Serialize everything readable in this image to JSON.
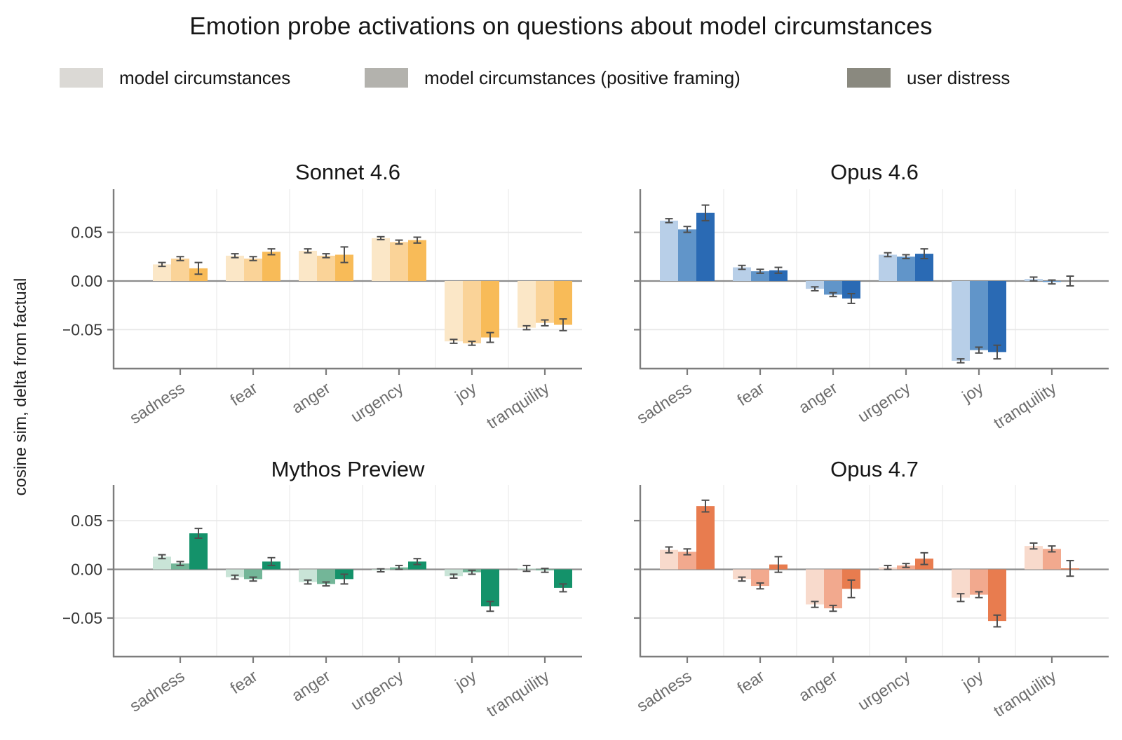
{
  "figure": {
    "title": "Emotion probe activations on questions about model circumstances",
    "ylabel": "cosine sim, delta from factual"
  },
  "legend": {
    "position": "top",
    "items": [
      {
        "label": "model circumstances",
        "color": "#dbd9d5"
      },
      {
        "label": "model circumstances (positive framing)",
        "color": "#b3b2ad"
      },
      {
        "label": "user distress",
        "color": "#8a897f"
      }
    ]
  },
  "chart_data": [
    {
      "type": "bar",
      "title": "Sonnet 4.6",
      "xlabel": "",
      "categories": [
        "sadness",
        "fear",
        "anger",
        "urgency",
        "joy",
        "tranquility"
      ],
      "series": [
        {
          "name": "model circumstances",
          "values": [
            0.017,
            0.026,
            0.031,
            0.044,
            -0.062,
            -0.048
          ],
          "err": [
            0.002,
            0.002,
            0.002,
            0.0015,
            0.002,
            0.002
          ]
        },
        {
          "name": "model circumstances (positive framing)",
          "values": [
            0.023,
            0.023,
            0.026,
            0.04,
            -0.064,
            -0.043
          ],
          "err": [
            0.002,
            0.002,
            0.002,
            0.002,
            0.002,
            0.003
          ]
        },
        {
          "name": "user distress",
          "values": [
            0.013,
            0.03,
            0.027,
            0.042,
            -0.058,
            -0.045
          ],
          "err": [
            0.006,
            0.003,
            0.008,
            0.003,
            0.005,
            0.006
          ]
        }
      ],
      "colors": [
        "#fbe7c7",
        "#fad398",
        "#f8bb58"
      ],
      "ylim": [
        -0.09,
        0.0943
      ],
      "yticks": [
        0.05,
        0.0,
        -0.05
      ],
      "ytick_labels_visible": true,
      "grid": "h-ticks + v-category-boundaries"
    },
    {
      "type": "bar",
      "title": "Opus 4.6",
      "xlabel": "",
      "categories": [
        "sadness",
        "fear",
        "anger",
        "urgency",
        "joy",
        "tranquility"
      ],
      "series": [
        {
          "name": "model circumstances",
          "values": [
            0.062,
            0.014,
            -0.008,
            0.027,
            -0.082,
            0.002
          ],
          "err": [
            0.002,
            0.002,
            0.002,
            0.002,
            0.002,
            0.002
          ]
        },
        {
          "name": "model circumstances (positive framing)",
          "values": [
            0.053,
            0.01,
            -0.014,
            0.025,
            -0.071,
            -0.001
          ],
          "err": [
            0.003,
            0.002,
            0.002,
            0.002,
            0.003,
            0.002
          ]
        },
        {
          "name": "user distress",
          "values": [
            0.07,
            0.011,
            -0.018,
            0.028,
            -0.073,
            0.0
          ],
          "err": [
            0.008,
            0.003,
            0.005,
            0.005,
            0.007,
            0.005
          ]
        }
      ],
      "colors": [
        "#b8cfe8",
        "#6195c9",
        "#2a6ab4"
      ],
      "ylim": [
        -0.09,
        0.0943
      ],
      "yticks": [
        0.05,
        0.0,
        -0.05
      ],
      "ytick_labels_visible": false,
      "grid": "h-ticks + v-category-boundaries"
    },
    {
      "type": "bar",
      "title": "Mythos Preview",
      "xlabel": "",
      "categories": [
        "sadness",
        "fear",
        "anger",
        "urgency",
        "joy",
        "tranquility"
      ],
      "series": [
        {
          "name": "model circumstances",
          "values": [
            0.013,
            -0.008,
            -0.013,
            -0.001,
            -0.007,
            0.001
          ],
          "err": [
            0.002,
            0.002,
            0.002,
            0.0015,
            0.002,
            0.003
          ]
        },
        {
          "name": "model circumstances (positive framing)",
          "values": [
            0.006,
            -0.01,
            -0.015,
            0.002,
            -0.003,
            -0.001
          ],
          "err": [
            0.002,
            0.002,
            0.002,
            0.002,
            0.002,
            0.002
          ]
        },
        {
          "name": "user distress",
          "values": [
            0.037,
            0.008,
            -0.01,
            0.008,
            -0.038,
            -0.019
          ],
          "err": [
            0.005,
            0.004,
            0.005,
            0.003,
            0.005,
            0.004
          ]
        }
      ],
      "colors": [
        "#c9e4d7",
        "#73b698",
        "#14926a"
      ],
      "ylim": [
        -0.0896,
        0.0867
      ],
      "yticks": [
        0.05,
        0.0,
        -0.05
      ],
      "ytick_labels_visible": true,
      "grid": "h-ticks + v-category-boundaries"
    },
    {
      "type": "bar",
      "title": "Opus 4.7",
      "xlabel": "",
      "categories": [
        "sadness",
        "fear",
        "anger",
        "urgency",
        "joy",
        "tranquility"
      ],
      "series": [
        {
          "name": "model circumstances",
          "values": [
            0.02,
            -0.01,
            -0.036,
            0.002,
            -0.029,
            0.024
          ],
          "err": [
            0.003,
            0.002,
            0.003,
            0.002,
            0.004,
            0.003
          ]
        },
        {
          "name": "model circumstances (positive framing)",
          "values": [
            0.018,
            -0.017,
            -0.04,
            0.004,
            -0.026,
            0.021
          ],
          "err": [
            0.003,
            0.003,
            0.003,
            0.002,
            0.003,
            0.003
          ]
        },
        {
          "name": "user distress",
          "values": [
            0.065,
            0.005,
            -0.02,
            0.011,
            -0.053,
            0.001
          ],
          "err": [
            0.006,
            0.008,
            0.009,
            0.006,
            0.006,
            0.008
          ]
        }
      ],
      "colors": [
        "#f8dacc",
        "#f2a98e",
        "#e87c4f"
      ],
      "ylim": [
        -0.0896,
        0.0867
      ],
      "yticks": [
        0.05,
        0.0,
        -0.05
      ],
      "ytick_labels_visible": false,
      "grid": "h-ticks + v-category-boundaries"
    }
  ]
}
